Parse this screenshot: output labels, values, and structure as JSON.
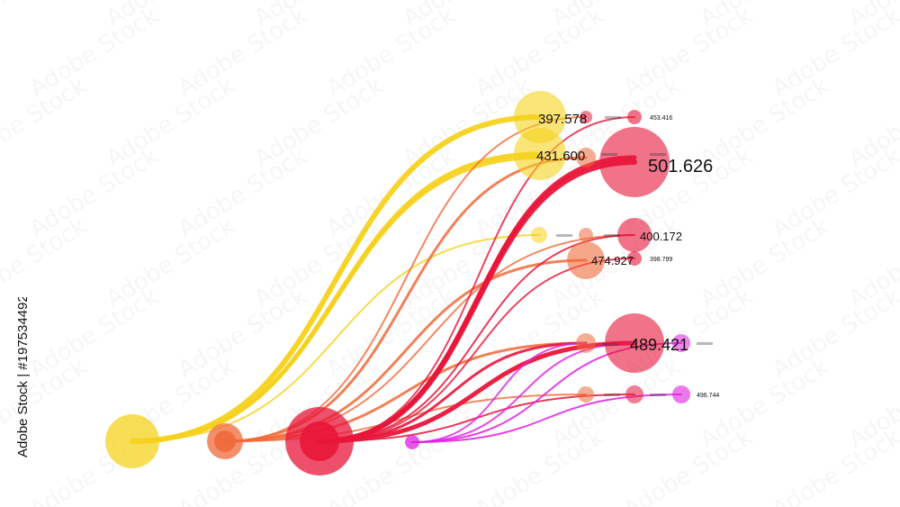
{
  "stock_id": "Adobe Stock | #197534492",
  "watermark_text": "Adobe Stock",
  "chart_data": {
    "type": "flow",
    "title": "",
    "sources": [
      {
        "color": "#f5d21e"
      },
      {
        "color": "#f06a3a"
      },
      {
        "color": "#e8163a"
      },
      {
        "color": "#e020e0"
      }
    ],
    "targets": [
      {
        "label": "397.578",
        "value": 397.578,
        "color": "#f5d21e",
        "emphasis": true
      },
      {
        "label": "453.416",
        "value": 453.416,
        "color": "#e8163a",
        "emphasis": false
      },
      {
        "label": "431.600",
        "value": 431.6,
        "color": "#f5d21e",
        "emphasis": true
      },
      {
        "label": "501.626",
        "value": 501.626,
        "color": "#e8163a",
        "emphasis": true
      },
      {
        "label": "400.172",
        "value": 400.172,
        "color": "#e8163a",
        "emphasis": true
      },
      {
        "label": "474.927",
        "value": 474.927,
        "color": "#f06a3a",
        "emphasis": true
      },
      {
        "label": "398.799",
        "value": 398.799,
        "color": "#e8163a",
        "emphasis": false
      },
      {
        "label": "489.421",
        "value": 489.421,
        "color": "#e8163a",
        "emphasis": true
      },
      {
        "label": "496.744",
        "value": 496.744,
        "color": "#e020e0",
        "emphasis": false
      }
    ]
  }
}
